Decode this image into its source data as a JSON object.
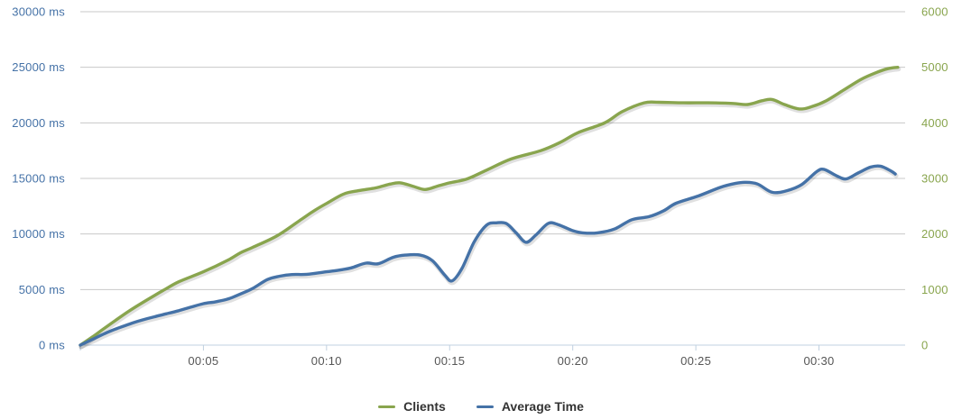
{
  "chart_data": {
    "type": "line",
    "title": "",
    "x_axis": {
      "kind": "elapsed-time",
      "min_minutes": 0,
      "max_minutes": 33.5,
      "ticks": [
        {
          "t": 5,
          "label": "00:05"
        },
        {
          "t": 10,
          "label": "00:10"
        },
        {
          "t": 15,
          "label": "00:15"
        },
        {
          "t": 20,
          "label": "00:20"
        },
        {
          "t": 25,
          "label": "00:25"
        },
        {
          "t": 30,
          "label": "00:30"
        }
      ]
    },
    "left_axis": {
      "min": 0,
      "max": 30000,
      "unit": "ms",
      "ticks": [
        {
          "v": 0,
          "label": "0 ms"
        },
        {
          "v": 5000,
          "label": "5000 ms"
        },
        {
          "v": 10000,
          "label": "10000 ms"
        },
        {
          "v": 15000,
          "label": "15000 ms"
        },
        {
          "v": 20000,
          "label": "20000 ms"
        },
        {
          "v": 25000,
          "label": "25000 ms"
        },
        {
          "v": 30000,
          "label": "30000 ms"
        }
      ]
    },
    "right_axis": {
      "min": 0,
      "max": 6000,
      "unit": "",
      "ticks": [
        {
          "v": 0,
          "label": "0"
        },
        {
          "v": 1000,
          "label": "1000"
        },
        {
          "v": 2000,
          "label": "2000"
        },
        {
          "v": 3000,
          "label": "3000"
        },
        {
          "v": 4000,
          "label": "4000"
        },
        {
          "v": 5000,
          "label": "5000"
        },
        {
          "v": 6000,
          "label": "6000"
        }
      ]
    },
    "grid": true,
    "legend_position": "bottom-center",
    "series": [
      {
        "name": "Clients",
        "axis": "right",
        "color": "#89A54E",
        "points": [
          [
            0,
            0
          ],
          [
            0.5,
            150
          ],
          [
            1,
            310
          ],
          [
            2,
            620
          ],
          [
            3,
            890
          ],
          [
            3.43,
            1000
          ],
          [
            4,
            1140
          ],
          [
            5,
            1320
          ],
          [
            6,
            1530
          ],
          [
            6.5,
            1660
          ],
          [
            7,
            1760
          ],
          [
            8,
            1970
          ],
          [
            9,
            2270
          ],
          [
            9.5,
            2420
          ],
          [
            10,
            2550
          ],
          [
            10.7,
            2720
          ],
          [
            11.3,
            2780
          ],
          [
            12,
            2830
          ],
          [
            12.6,
            2900
          ],
          [
            13,
            2920
          ],
          [
            13.5,
            2860
          ],
          [
            14,
            2800
          ],
          [
            14.5,
            2860
          ],
          [
            15,
            2920
          ],
          [
            15.7,
            2990
          ],
          [
            16.5,
            3150
          ],
          [
            17.5,
            3350
          ],
          [
            18.7,
            3500
          ],
          [
            19.5,
            3650
          ],
          [
            20.2,
            3820
          ],
          [
            21.3,
            4000
          ],
          [
            22,
            4200
          ],
          [
            22.9,
            4360
          ],
          [
            23.5,
            4370
          ],
          [
            24.5,
            4360
          ],
          [
            25.5,
            4360
          ],
          [
            26.5,
            4350
          ],
          [
            27.1,
            4330
          ],
          [
            27.7,
            4400
          ],
          [
            28.1,
            4420
          ],
          [
            28.6,
            4330
          ],
          [
            29.2,
            4250
          ],
          [
            29.7,
            4290
          ],
          [
            30.3,
            4400
          ],
          [
            31,
            4590
          ],
          [
            31.7,
            4780
          ],
          [
            32.3,
            4900
          ],
          [
            32.8,
            4975
          ],
          [
            33.2,
            5000
          ]
        ]
      },
      {
        "name": "Average Time",
        "axis": "left",
        "color": "#4572A7",
        "points": [
          [
            0,
            0
          ],
          [
            0.5,
            520
          ],
          [
            1,
            1050
          ],
          [
            1.5,
            1500
          ],
          [
            2,
            1900
          ],
          [
            2.5,
            2250
          ],
          [
            3,
            2550
          ],
          [
            3.5,
            2820
          ],
          [
            4,
            3100
          ],
          [
            4.5,
            3420
          ],
          [
            5,
            3730
          ],
          [
            5.5,
            3900
          ],
          [
            6,
            4150
          ],
          [
            6.5,
            4600
          ],
          [
            7,
            5100
          ],
          [
            7.6,
            5900
          ],
          [
            8.1,
            6200
          ],
          [
            8.6,
            6350
          ],
          [
            9.2,
            6370
          ],
          [
            10,
            6600
          ],
          [
            10.5,
            6750
          ],
          [
            11,
            6950
          ],
          [
            11.6,
            7380
          ],
          [
            12.1,
            7320
          ],
          [
            12.7,
            7900
          ],
          [
            13.2,
            8100
          ],
          [
            13.8,
            8100
          ],
          [
            14.3,
            7600
          ],
          [
            14.8,
            6300
          ],
          [
            15.1,
            5780
          ],
          [
            15.5,
            6900
          ],
          [
            16,
            9300
          ],
          [
            16.5,
            10800
          ],
          [
            16.9,
            11000
          ],
          [
            17.3,
            10950
          ],
          [
            17.7,
            10100
          ],
          [
            18.1,
            9250
          ],
          [
            18.5,
            9900
          ],
          [
            19,
            10950
          ],
          [
            19.4,
            10850
          ],
          [
            20,
            10300
          ],
          [
            20.4,
            10100
          ],
          [
            21,
            10100
          ],
          [
            21.7,
            10450
          ],
          [
            22.4,
            11290
          ],
          [
            23.1,
            11560
          ],
          [
            23.7,
            12100
          ],
          [
            24.2,
            12770
          ],
          [
            25.1,
            13420
          ],
          [
            26,
            14200
          ],
          [
            26.6,
            14550
          ],
          [
            27,
            14650
          ],
          [
            27.5,
            14500
          ],
          [
            28.1,
            13750
          ],
          [
            28.7,
            13900
          ],
          [
            29.3,
            14450
          ],
          [
            29.9,
            15600
          ],
          [
            30.2,
            15820
          ],
          [
            30.7,
            15250
          ],
          [
            31.1,
            14950
          ],
          [
            31.6,
            15500
          ],
          [
            32.1,
            16020
          ],
          [
            32.5,
            16100
          ],
          [
            32.9,
            15700
          ],
          [
            33.1,
            15400
          ]
        ]
      }
    ],
    "colors": {
      "grid_line": "#C8C8C8",
      "axis_line": "#C0D0E0",
      "tick_mark": "#C0D0E0",
      "x_label": "#555555",
      "legend_text": "#333333",
      "background": "#FFFFFF"
    }
  },
  "legend": {
    "items": [
      {
        "label": "Clients"
      },
      {
        "label": "Average Time"
      }
    ]
  }
}
